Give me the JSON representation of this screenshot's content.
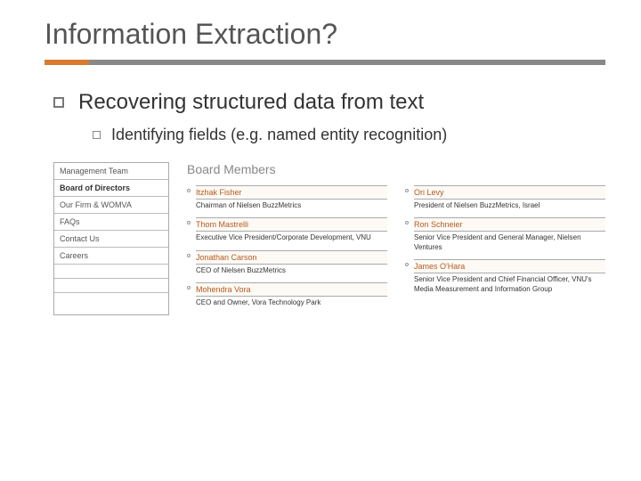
{
  "title": "Information Extraction?",
  "accent_color": "#d87b2f",
  "bullet_main": "Recovering structured data from text",
  "bullet_sub": "Identifying fields (e.g. named entity recognition)",
  "sidebar": {
    "items": [
      "Management Team",
      "Board of Directors",
      "Our Firm & WOMVA",
      "FAQs",
      "Contact Us",
      "Careers",
      "",
      ""
    ],
    "active_index": 1
  },
  "main_title": "Board Members",
  "members_col1": [
    {
      "name": "Itzhak Fisher",
      "role": "Chairman of Nielsen BuzzMetrics"
    },
    {
      "name": "Thom Mastrelli",
      "role": "Executive Vice President/Corporate Development, VNU"
    },
    {
      "name": "Jonathan Carson",
      "role": "CEO of Nielsen BuzzMetrics"
    },
    {
      "name": "Mohendra Vora",
      "role": "CEO and Owner, Vora Technology Park"
    }
  ],
  "members_col2": [
    {
      "name": "Ori Levy",
      "role": "President of Nielsen BuzzMetrics, Israel"
    },
    {
      "name": "Ron Schneier",
      "role": "Senior Vice President and General Manager, Nielsen Ventures"
    },
    {
      "name": "James O'Hara",
      "role": "Senior Vice President and Chief Financial Officer, VNU's Media Measurement and Information Group"
    }
  ]
}
